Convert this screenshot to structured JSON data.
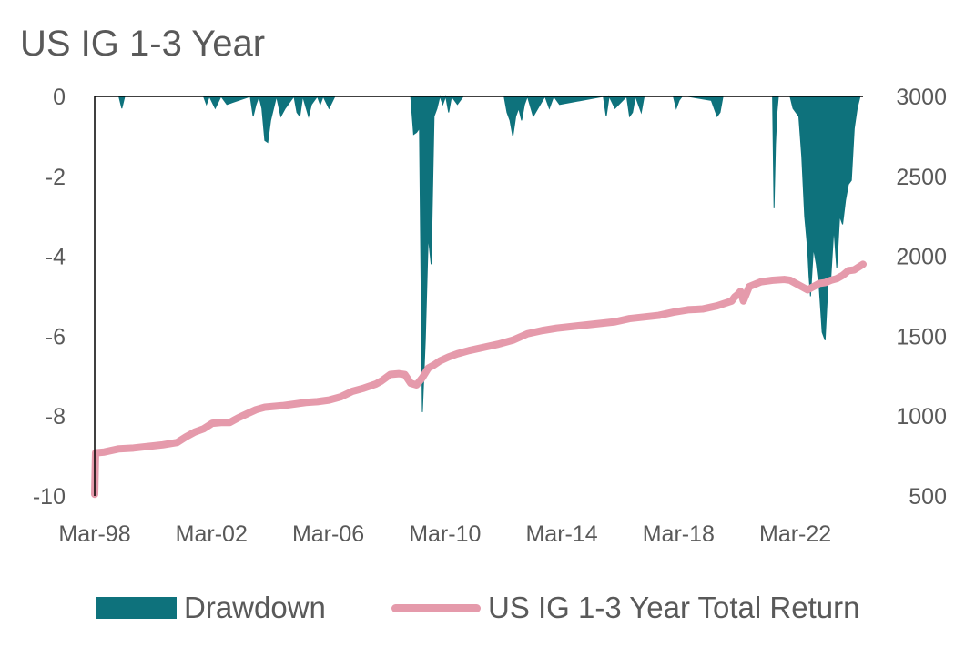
{
  "title": "US IG 1-3 Year",
  "chart_data": {
    "type": "area",
    "title": "US IG 1-3 Year",
    "x_ticks": [
      "Mar-98",
      "Mar-02",
      "Mar-06",
      "Mar-10",
      "Mar-14",
      "Mar-18",
      "Mar-22"
    ],
    "y_left": {
      "ticks": [
        "0",
        "-2",
        "-4",
        "-6",
        "-8",
        "-10"
      ],
      "range": [
        -10,
        0
      ]
    },
    "y_right": {
      "ticks": [
        "3000",
        "2500",
        "2000",
        "1500",
        "1000",
        "500"
      ],
      "range": [
        500,
        3000
      ]
    },
    "x_range": [
      1998.17,
      2024.5
    ],
    "grid": false,
    "legend_position": "bottom",
    "series": [
      {
        "name": "Drawdown",
        "type": "area",
        "axis": "left",
        "color": "#0e727c",
        "x": [
          1998.17,
          1999.0,
          1999.1,
          1999.2,
          1999.4,
          2001.9,
          2002.0,
          2002.1,
          2002.3,
          2002.5,
          2002.7,
          2003.5,
          2003.6,
          2003.7,
          2003.8,
          2003.9,
          2004.0,
          2004.1,
          2004.2,
          2004.4,
          2004.55,
          2004.7,
          2005.0,
          2005.1,
          2005.2,
          2005.3,
          2005.5,
          2005.6,
          2005.8,
          2005.9,
          2006.0,
          2006.2,
          2006.4,
          2009.0,
          2009.1,
          2009.2,
          2009.3,
          2009.4,
          2009.5,
          2009.6,
          2009.7,
          2009.8,
          2009.9,
          2010.0,
          2010.1,
          2010.2,
          2010.3,
          2010.4,
          2010.6,
          2010.8,
          2012.2,
          2012.3,
          2012.4,
          2012.5,
          2012.6,
          2012.7,
          2012.8,
          2012.9,
          2013.0,
          2013.2,
          2013.6,
          2013.75,
          2013.9,
          2014.1,
          2015.6,
          2015.7,
          2015.8,
          2016.0,
          2016.4,
          2016.5,
          2016.6,
          2016.7,
          2016.9,
          2017.0,
          2018.0,
          2018.1,
          2018.2,
          2018.3,
          2018.5,
          2019.3,
          2019.4,
          2019.5,
          2019.6,
          2019.7,
          2019.8,
          2021.4,
          2021.45,
          2021.5,
          2021.55,
          2021.6,
          2021.7,
          2021.8,
          2022.0,
          2022.1,
          2022.2,
          2022.3,
          2022.4,
          2022.5,
          2022.6,
          2022.65,
          2022.7,
          2022.8,
          2022.9,
          2023.0,
          2023.1,
          2023.2,
          2023.3,
          2023.4,
          2023.5,
          2023.6,
          2023.7,
          2023.8,
          2023.9,
          2024.0,
          2024.1,
          2024.2,
          2024.3,
          2024.4,
          2024.5
        ],
        "values": [
          0,
          0,
          -0.3,
          0,
          0,
          0,
          -0.2,
          0,
          -0.3,
          0,
          -0.2,
          0,
          -0.5,
          -0.2,
          0,
          -0.3,
          -1.1,
          -1.15,
          -0.6,
          0,
          -0.5,
          -0.3,
          0,
          -0.4,
          -0.5,
          0,
          -0.5,
          -0.2,
          0,
          -0.2,
          0,
          -0.3,
          0,
          0,
          -0.95,
          -0.9,
          -0.8,
          -7.9,
          -6.1,
          -3.5,
          -4.2,
          -0.5,
          -0.3,
          0,
          -0.2,
          0,
          -0.4,
          0,
          -0.2,
          0,
          0,
          -0.4,
          -0.6,
          -1.0,
          -0.5,
          -0.3,
          -0.6,
          -0.2,
          0,
          -0.5,
          0,
          -0.3,
          0,
          -0.2,
          0,
          -0.5,
          0,
          -0.3,
          0,
          -0.5,
          -0.4,
          0,
          -0.4,
          0,
          0,
          -0.3,
          -0.1,
          0,
          0,
          -0.1,
          -0.3,
          -0.5,
          -0.4,
          0,
          0,
          0,
          -2.8,
          -1.2,
          -0.4,
          0,
          0,
          0,
          0,
          -0.3,
          -0.4,
          -0.5,
          -1.5,
          -3.0,
          -3.8,
          -4.5,
          -5.0,
          -3.8,
          -4.2,
          -4.8,
          -5.9,
          -6.1,
          -4.7,
          -4.5,
          -3.3,
          -4.3,
          -3.0,
          -3.2,
          -2.6,
          -2.2,
          -2.1,
          -0.8,
          -0.3,
          0,
          0
        ],
        "values_note": ""
      },
      {
        "name": "US IG 1-3 Year Total Return",
        "type": "line",
        "axis": "right",
        "color": "#e59aab",
        "x": [
          1998.17,
          1998.2,
          1998.5,
          1999.0,
          1999.5,
          2000.0,
          2000.5,
          2001.0,
          2001.3,
          2001.6,
          2001.9,
          2002.2,
          2002.5,
          2002.8,
          2003.1,
          2003.4,
          2003.7,
          2004.0,
          2004.3,
          2004.6,
          2005.0,
          2005.4,
          2005.8,
          2006.2,
          2006.6,
          2007.0,
          2007.4,
          2007.8,
          2008.0,
          2008.3,
          2008.6,
          2008.8,
          2009.0,
          2009.2,
          2009.4,
          2009.6,
          2009.8,
          2010.0,
          2010.3,
          2010.6,
          2011.0,
          2011.5,
          2012.0,
          2012.5,
          2013.0,
          2013.5,
          2014.0,
          2014.5,
          2015.0,
          2015.5,
          2016.0,
          2016.5,
          2017.0,
          2017.5,
          2018.0,
          2018.5,
          2019.0,
          2019.5,
          2020.0,
          2020.1,
          2020.2,
          2020.3,
          2020.4,
          2020.6,
          2021.0,
          2021.4,
          2021.8,
          2022.0,
          2022.2,
          2022.4,
          2022.6,
          2022.8,
          2023.0,
          2023.2,
          2023.4,
          2023.6,
          2023.8,
          2024.0,
          2024.2,
          2024.5
        ],
        "values": [
          510,
          770,
          775,
          795,
          800,
          810,
          820,
          835,
          870,
          900,
          920,
          955,
          960,
          960,
          990,
          1015,
          1040,
          1055,
          1060,
          1065,
          1075,
          1085,
          1090,
          1100,
          1120,
          1155,
          1175,
          1200,
          1220,
          1260,
          1265,
          1260,
          1205,
          1195,
          1240,
          1300,
          1320,
          1345,
          1370,
          1390,
          1410,
          1430,
          1450,
          1475,
          1515,
          1535,
          1550,
          1560,
          1570,
          1580,
          1590,
          1610,
          1620,
          1630,
          1650,
          1665,
          1670,
          1690,
          1720,
          1745,
          1760,
          1780,
          1720,
          1810,
          1840,
          1850,
          1855,
          1850,
          1830,
          1810,
          1790,
          1810,
          1830,
          1835,
          1850,
          1860,
          1880,
          1910,
          1915,
          1950
        ]
      }
    ]
  },
  "legend": {
    "drawdown_label": "Drawdown",
    "total_return_label": "US IG 1-3 Year Total Return"
  }
}
